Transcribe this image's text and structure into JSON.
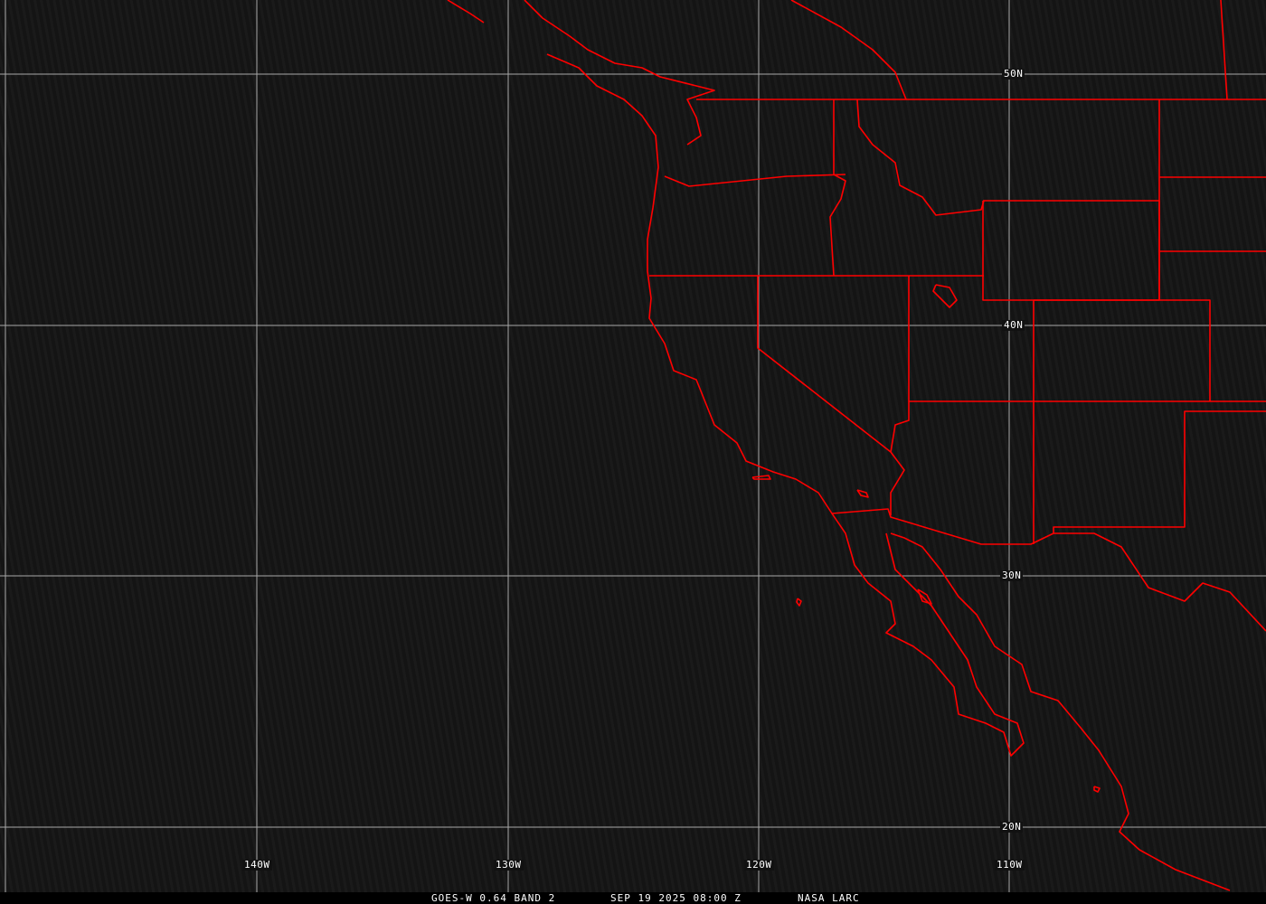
{
  "map": {
    "grid_color": "#b0b0b0",
    "border_color": "#ff0000",
    "lat_labels": [
      "50N",
      "40N",
      "30N",
      "20N"
    ],
    "lon_labels": [
      "140W",
      "130W",
      "120W",
      "110W"
    ]
  },
  "footer": {
    "product": "GOES-W 0.64 BAND 2",
    "datetime": "SEP 19 2025 08:00 Z",
    "source": "NASA LARC"
  }
}
